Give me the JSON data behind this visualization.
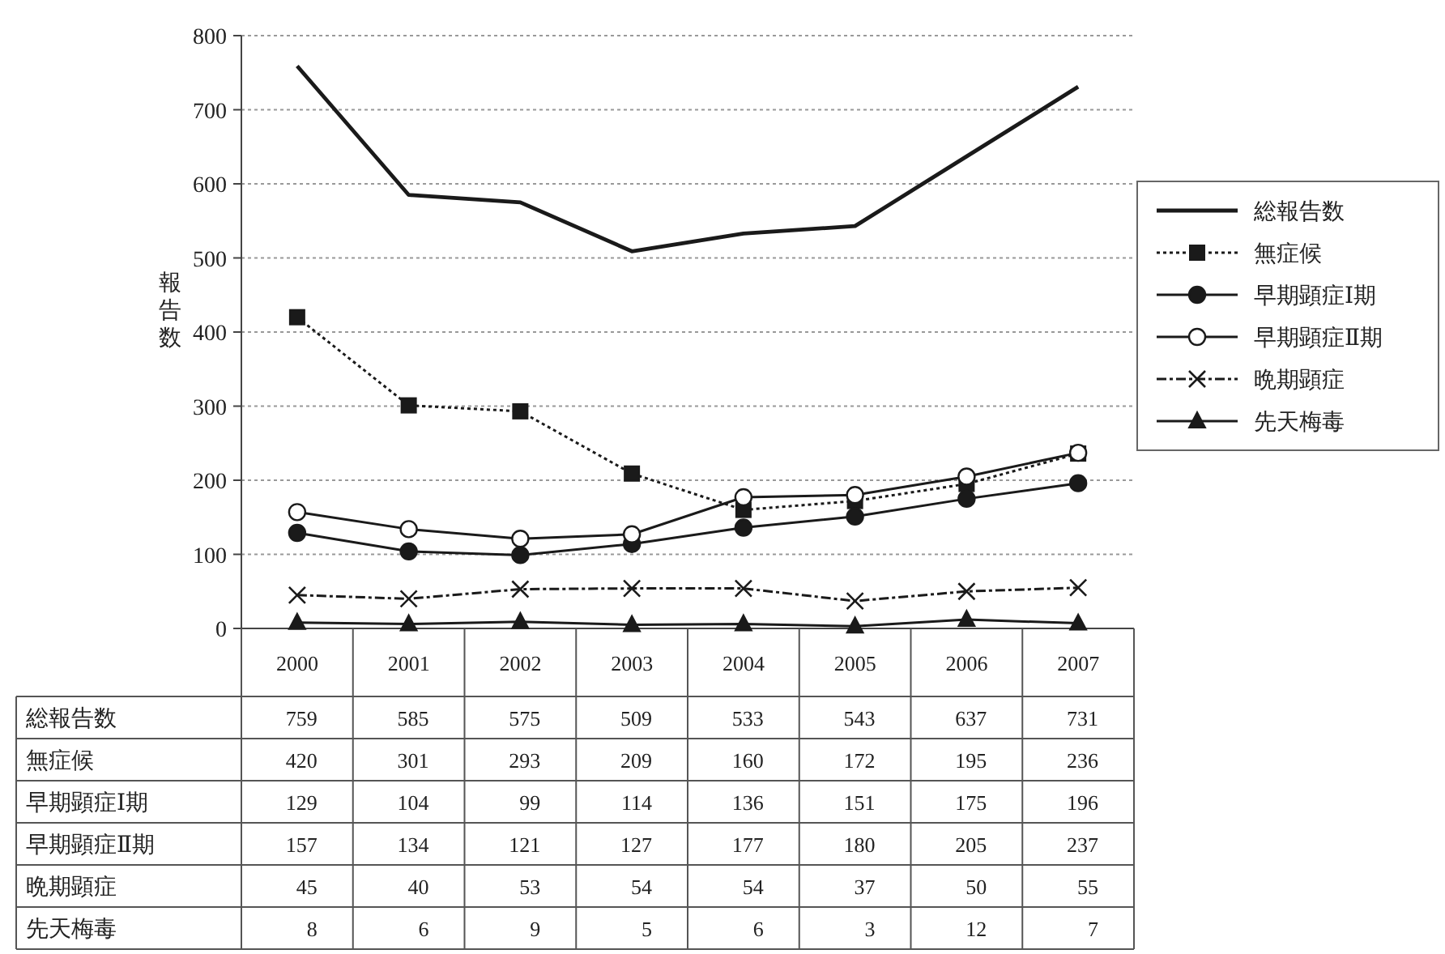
{
  "chart_data": {
    "type": "line",
    "ylabel": "報告数",
    "categories": [
      "2000",
      "2001",
      "2002",
      "2003",
      "2004",
      "2005",
      "2006",
      "2007"
    ],
    "series": [
      {
        "name": "総報告数",
        "color": "#1a1a1a",
        "marker": "none",
        "line_style": "solid",
        "values": [
          759,
          585,
          575,
          509,
          533,
          543,
          637,
          731
        ]
      },
      {
        "name": "無症候",
        "color": "#1a1a1a",
        "marker": "square",
        "line_style": "dotted",
        "values": [
          420,
          301,
          293,
          209,
          160,
          172,
          195,
          236
        ]
      },
      {
        "name": "早期顕症Ⅰ期",
        "color": "#1a1a1a",
        "marker": "circle",
        "line_style": "solid",
        "values": [
          129,
          104,
          99,
          114,
          136,
          151,
          175,
          196
        ]
      },
      {
        "name": "早期顕症Ⅱ期",
        "color": "#1a1a1a",
        "marker": "circle",
        "line_style": "solid",
        "values": [
          157,
          134,
          121,
          127,
          177,
          180,
          205,
          237
        ]
      },
      {
        "name": "晩期顕症",
        "color": "#1a1a1a",
        "marker": "cross",
        "line_style": "dashed",
        "values": [
          45,
          40,
          53,
          54,
          54,
          37,
          50,
          55
        ]
      },
      {
        "name": "先天梅毒",
        "color": "#1a1a1a",
        "marker": "triangle",
        "line_style": "solid",
        "values": [
          8,
          6,
          9,
          5,
          6,
          3,
          12,
          7
        ]
      }
    ],
    "ylim": [
      0,
      800
    ],
    "yticks": [
      0,
      100,
      200,
      300,
      400,
      500,
      600,
      700,
      800
    ],
    "grid": "y",
    "legend": "right",
    "data_labels": true
  }
}
